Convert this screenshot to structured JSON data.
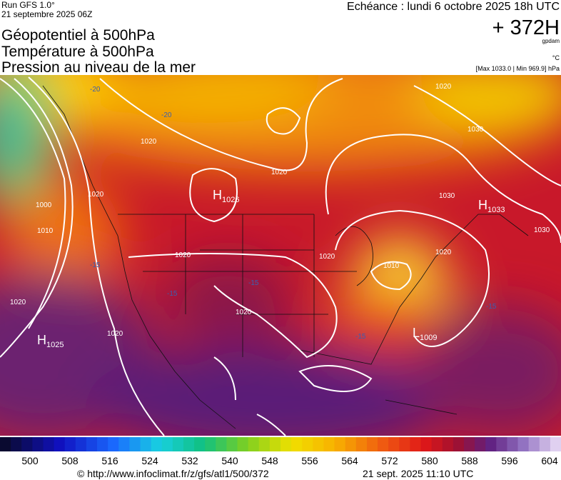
{
  "header": {
    "run": "Run GFS 1.0°",
    "date": "21 septembre 2025 06Z",
    "fields": [
      "Géopotentiel à 500hPa",
      "Température à 500hPa",
      "Pression au niveau de la mer"
    ],
    "valid": "Echéance : lundi 6 octobre 2025 18h UTC",
    "lead": "+ 372H",
    "unit_geo": "gpdam",
    "unit_temp": "°C",
    "pressure_range": "[Max 1033.0 | Min 969.9] hPa"
  },
  "map": {
    "centers": [
      {
        "type": "H",
        "value": 1026
      },
      {
        "type": "H",
        "value": 1033
      },
      {
        "type": "H",
        "value": 1025
      },
      {
        "type": "L",
        "value": 1009
      }
    ],
    "isobar_labels": [
      1020,
      1020,
      1020,
      1000,
      1010,
      1020,
      1020,
      1020,
      1020,
      1020,
      1030,
      1030,
      1030,
      1020,
      1010,
      1020
    ],
    "temperature_labels": [
      -20,
      -20,
      -15,
      -15,
      -15,
      -15,
      -15
    ]
  },
  "colorbar": {
    "labels": [
      500,
      508,
      516,
      524,
      532,
      540,
      548,
      556,
      564,
      572,
      580,
      588,
      596,
      604
    ]
  },
  "footer": {
    "source": "© http://www.infoclimat.fr/z/gfs/atl1/500/372",
    "timestamp": "21 sept. 2025 11:10 UTC"
  }
}
